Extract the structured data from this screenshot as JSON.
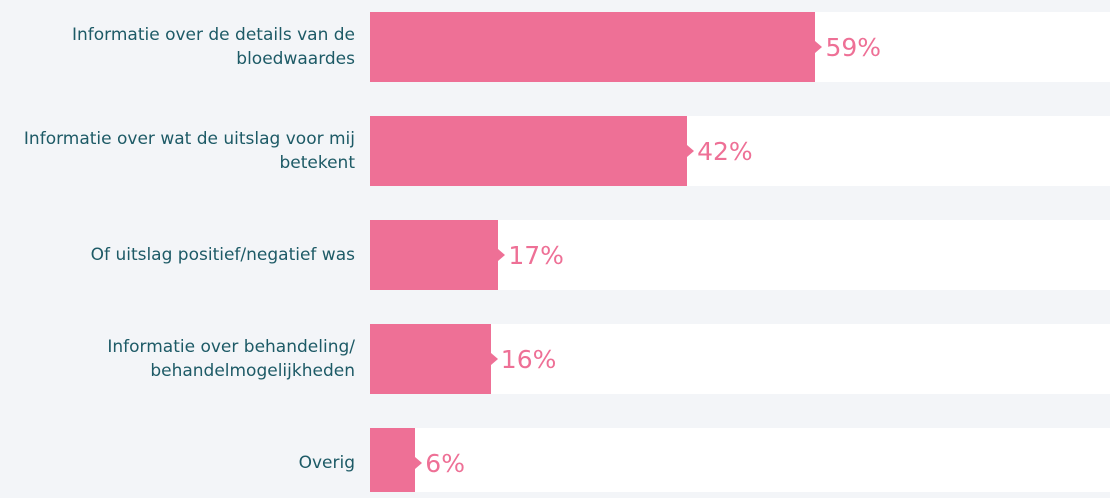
{
  "chart_data": {
    "type": "bar",
    "orientation": "horizontal",
    "color": "#ee7096",
    "categories": [
      "Informatie over de details van de bloedwaardes",
      "Informatie over wat de uitslag voor mij betekent",
      "Of uitslag positief/negatief was",
      "Informatie over behandeling/ behandelmogelijkheden",
      "Overig"
    ],
    "values": [
      59,
      42,
      17,
      16,
      6
    ],
    "value_labels": [
      "59%",
      "42%",
      "17%",
      "16%",
      "6%"
    ]
  }
}
